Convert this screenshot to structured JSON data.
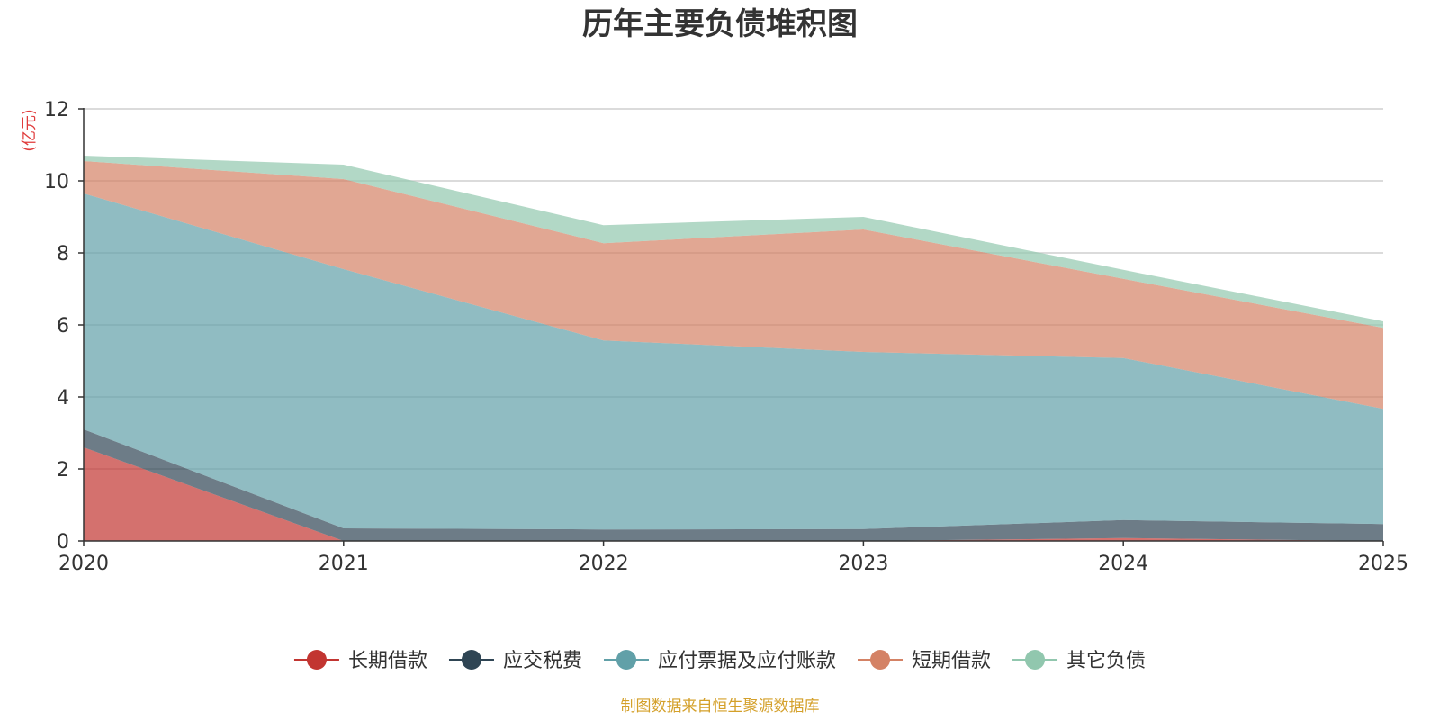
{
  "chart_data": {
    "type": "area",
    "stacked": true,
    "title": "历年主要负债堆积图",
    "unit_label": "(亿元)",
    "x": [
      "2020",
      "2021",
      "2022",
      "2023",
      "2024",
      "2025"
    ],
    "ylim": [
      0,
      12
    ],
    "yticks": [
      0,
      2,
      4,
      6,
      8,
      10,
      12
    ],
    "grid": true,
    "legend_position": "bottom-center",
    "series": [
      {
        "name": "长期借款",
        "color": "#c23531",
        "values": [
          2.6,
          0.0,
          0.0,
          0.0,
          0.08,
          0.0
        ]
      },
      {
        "name": "应交税费",
        "color": "#2f4554",
        "values": [
          0.5,
          0.35,
          0.32,
          0.33,
          0.5,
          0.47
        ]
      },
      {
        "name": "应付票据及应付账款",
        "color": "#61a0a8",
        "values": [
          6.55,
          7.2,
          5.25,
          4.92,
          4.5,
          3.2
        ]
      },
      {
        "name": "短期借款",
        "color": "#d48265",
        "values": [
          0.9,
          2.5,
          2.7,
          3.4,
          2.2,
          2.25
        ]
      },
      {
        "name": "其它负债",
        "color": "#91c7ae",
        "values": [
          0.15,
          0.4,
          0.5,
          0.35,
          0.25,
          0.18
        ]
      }
    ],
    "source": "制图数据来自恒生聚源数据库",
    "unit_color": "#e03b3b",
    "source_color": "#d4a02a"
  }
}
